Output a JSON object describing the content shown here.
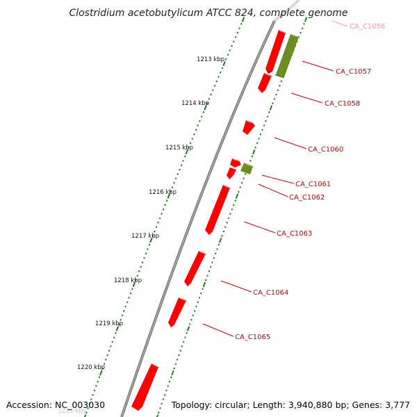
{
  "title": "Clostridium acetobutylicum ATCC 824, complete genome",
  "footer": {
    "accession": "Accession: NC_003030",
    "summary": "Topology: circular; Length: 3,940,880 bp; Genes: 3,777"
  },
  "ticks": [
    {
      "label": "1213 kbp",
      "kbp": 1213
    },
    {
      "label": "1214 kbp",
      "kbp": 1214
    },
    {
      "label": "1215 kbp",
      "kbp": 1215
    },
    {
      "label": "1216 kbp",
      "kbp": 1216
    },
    {
      "label": "1217 kbp",
      "kbp": 1217
    },
    {
      "label": "1218 kbp",
      "kbp": 1218
    },
    {
      "label": "1219 kbp",
      "kbp": 1219
    },
    {
      "label": "1220 kbp",
      "kbp": 1220
    },
    {
      "label": "1221 kbp",
      "kbp": 1221
    }
  ],
  "gene_labels": [
    {
      "name": "CA_C1056",
      "faded": true
    },
    {
      "name": "CA_C1057",
      "faded": false
    },
    {
      "name": "CA_C1058",
      "faded": false
    },
    {
      "name": "CA_C1060",
      "faded": false
    },
    {
      "name": "CA_C1061",
      "faded": false
    },
    {
      "name": "CA_C1062",
      "faded": false
    },
    {
      "name": "CA_C1063",
      "faded": false
    },
    {
      "name": "CA_C1064",
      "faded": false
    },
    {
      "name": "CA_C1065",
      "faded": false
    }
  ],
  "colors": {
    "gene_red": "#ff0000",
    "gene_green": "#6b8e23",
    "label_red": "#cc0000",
    "label_faded": "#f29aa8",
    "tick_green": "#1a7a1a",
    "backbone": "#808080"
  }
}
